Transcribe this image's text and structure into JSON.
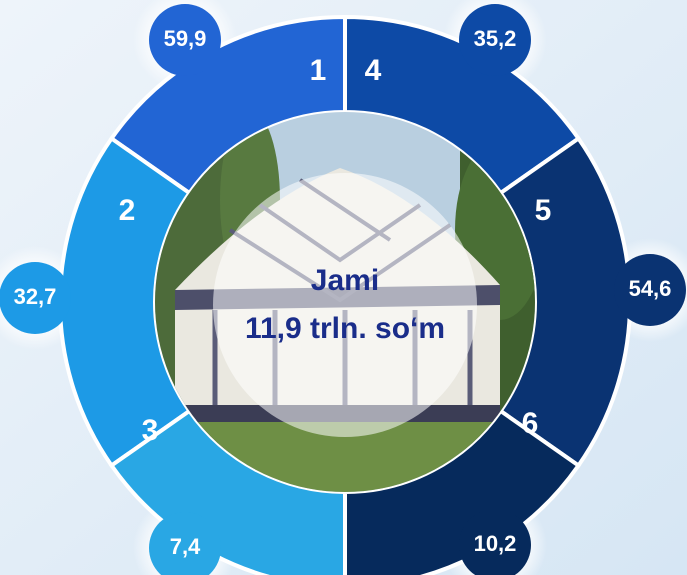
{
  "diagram": {
    "segments": [
      {
        "number": "1",
        "value": "59,9"
      },
      {
        "number": "2",
        "value": "32,7"
      },
      {
        "number": "3",
        "value": "7,4"
      },
      {
        "number": "4",
        "value": "35,2"
      },
      {
        "number": "5",
        "value": "54,6"
      },
      {
        "number": "6",
        "value": "10,2"
      }
    ],
    "center": {
      "title": "Jami",
      "total": "11,9 trln. so‘m"
    }
  }
}
